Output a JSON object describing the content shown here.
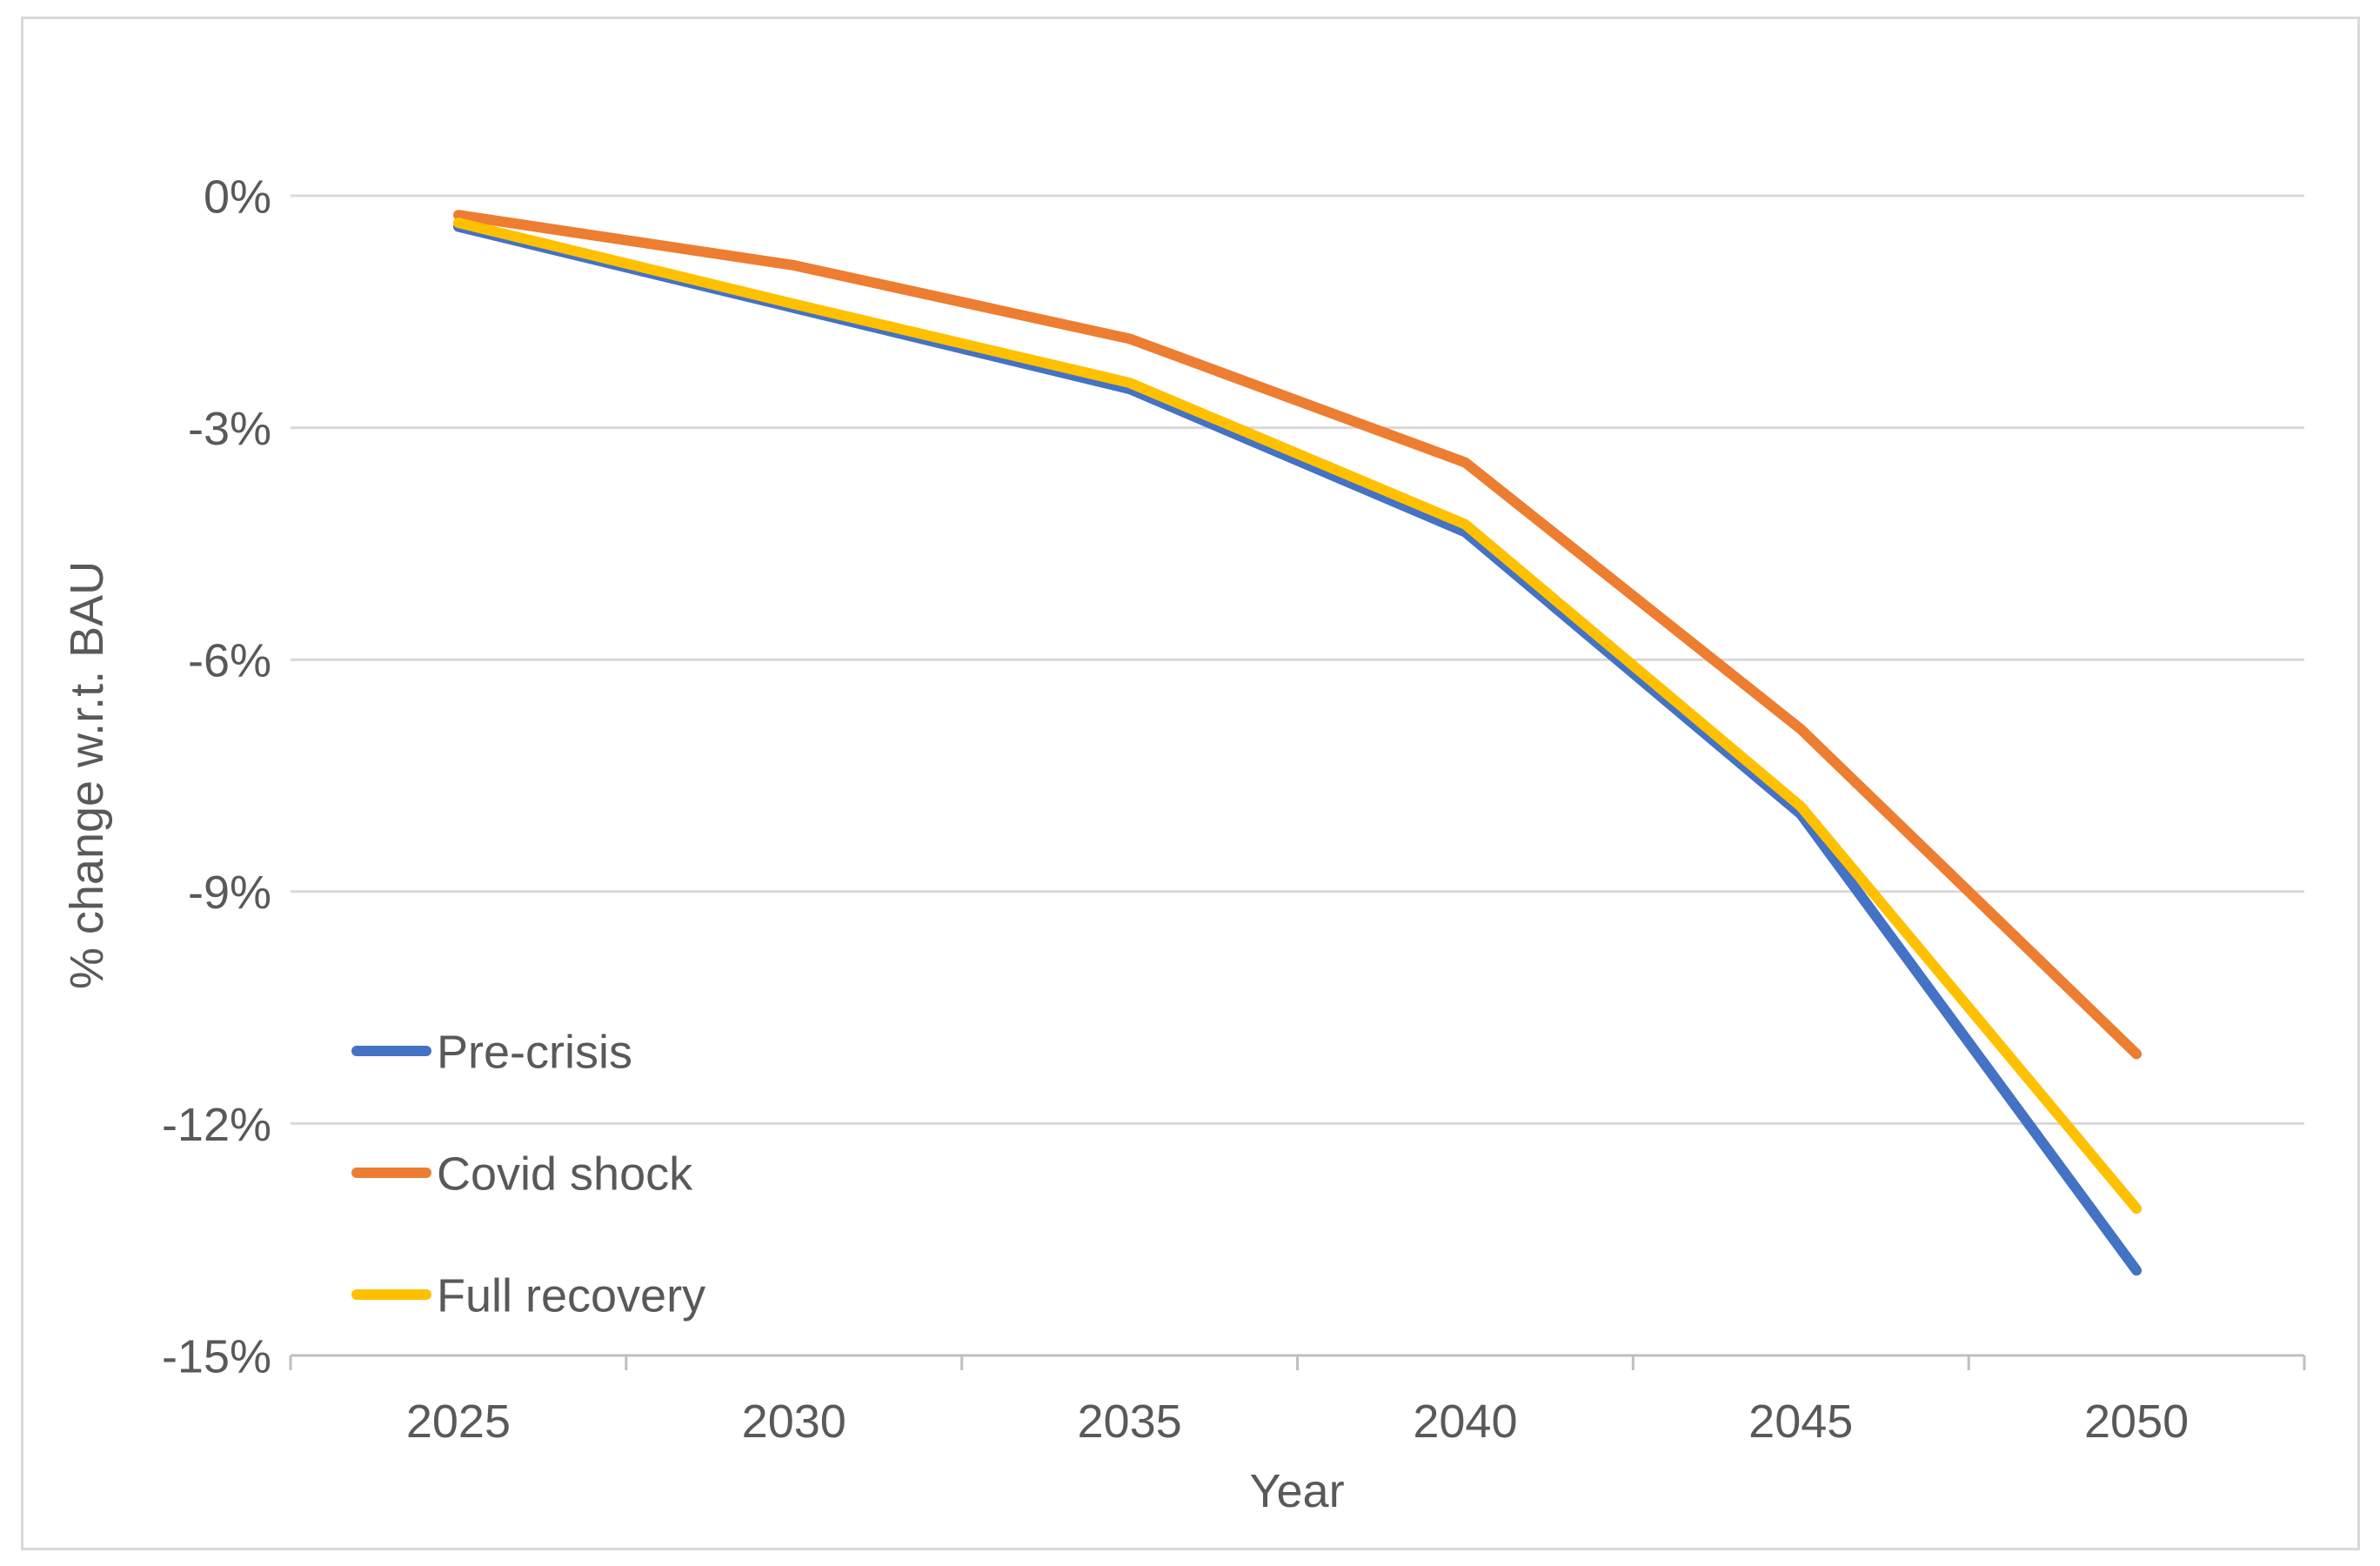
{
  "chart_data": {
    "type": "line",
    "title": "",
    "xlabel": "Year",
    "ylabel": "% change w.r.t. BAU",
    "x": [
      2025,
      2030,
      2035,
      2040,
      2045,
      2050
    ],
    "x_labels": [
      "2025",
      "2030",
      "2035",
      "2040",
      "2045",
      "2050"
    ],
    "series": [
      {
        "name": "Pre-crisis",
        "color": "#4472C4",
        "values": [
          -0.4,
          -1.45,
          -2.5,
          -4.35,
          -8.0,
          -13.9
        ]
      },
      {
        "name": "Covid shock",
        "color": "#ED7D31",
        "values": [
          -0.25,
          -0.9,
          -1.85,
          -3.45,
          -6.9,
          -11.1
        ]
      },
      {
        "name": "Full recovery",
        "color": "#FFC000",
        "values": [
          -0.35,
          -1.4,
          -2.42,
          -4.25,
          -7.9,
          -13.1
        ]
      }
    ],
    "ylim": [
      -15,
      0
    ],
    "yticks": {
      "values": [
        0,
        -3,
        -6,
        -9,
        -12,
        -15
      ],
      "labels": [
        "0%",
        "-3%",
        "-6%",
        "-9%",
        "-12%",
        "-15%"
      ]
    },
    "grid": true,
    "legend_position": "inside-left"
  },
  "colors": {
    "background": "#FFFFFF",
    "chart_border": "#D9D9D9",
    "gridline": "#D9D9D9",
    "axis_line": "#BFBFBF",
    "text": "#595959"
  }
}
